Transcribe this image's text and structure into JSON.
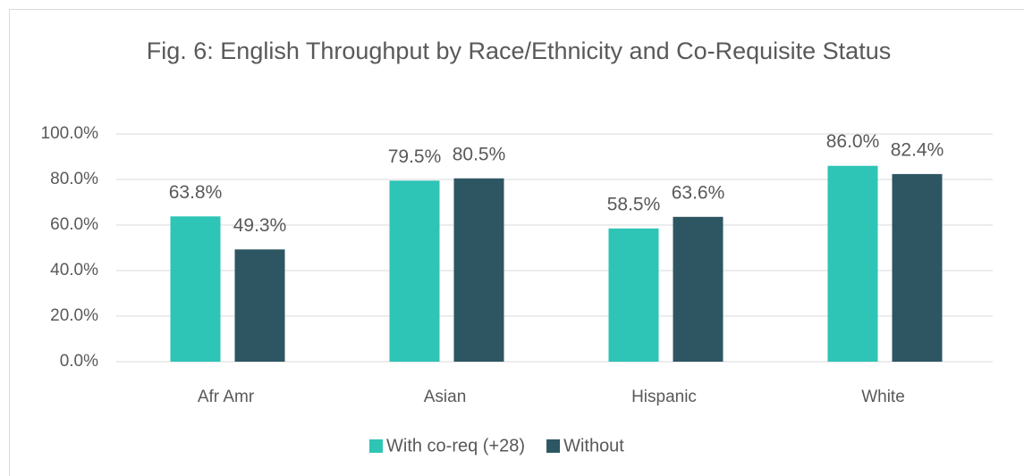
{
  "chart_data": {
    "type": "bar",
    "title": "Fig. 6: English Throughput by Race/Ethnicity and Co-Requisite Status",
    "categories": [
      "Afr Amr",
      "Asian",
      "Hispanic",
      "White"
    ],
    "series": [
      {
        "name": "With co-req (+28)",
        "color": "#2ec4b6",
        "values": [
          63.8,
          79.5,
          58.5,
          86.0
        ],
        "value_labels": [
          "63.8%",
          "79.5%",
          "58.5%",
          "86.0%"
        ]
      },
      {
        "name": "Without",
        "color": "#2d5662",
        "values": [
          49.3,
          80.5,
          63.6,
          82.4
        ],
        "value_labels": [
          "49.3%",
          "80.5%",
          "63.6%",
          "82.4%"
        ]
      }
    ],
    "ylim": [
      0,
      100
    ],
    "yticks": [
      {
        "value": 0,
        "label": "0.0%"
      },
      {
        "value": 20,
        "label": "20.0%"
      },
      {
        "value": 40,
        "label": "40.0%"
      },
      {
        "value": 60,
        "label": "60.0%"
      },
      {
        "value": 80,
        "label": "80.0%"
      },
      {
        "value": 100,
        "label": "100.0%"
      }
    ],
    "grid": true,
    "legend": "bottom"
  }
}
